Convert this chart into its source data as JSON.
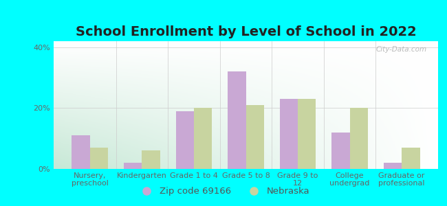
{
  "title": "School Enrollment by Level of School in 2022",
  "categories": [
    "Nursery,\npreschool",
    "Kindergarten",
    "Grade 1 to 4",
    "Grade 5 to 8",
    "Grade 9 to\n12",
    "College\nundergrad",
    "Graduate or\nprofessional"
  ],
  "zipcode_values": [
    11,
    2,
    19,
    32,
    23,
    12,
    2
  ],
  "nebraska_values": [
    7,
    6,
    20,
    21,
    23,
    20,
    7
  ],
  "zipcode_color": "#c9a8d4",
  "nebraska_color": "#c8d4a0",
  "background_outer": "#00ffff",
  "background_inner_topleft": "#e8f5ee",
  "background_inner_topright": "#ffffff",
  "background_inner_bottomleft": "#c8e8d8",
  "title_fontsize": 14,
  "tick_fontsize": 8,
  "legend_fontsize": 9.5,
  "ylim": [
    0,
    42
  ],
  "yticks": [
    0,
    20,
    40
  ],
  "ytick_labels": [
    "0%",
    "20%",
    "40%"
  ],
  "bar_width": 0.35,
  "zipcode_label": "Zip code 69166",
  "nebraska_label": "Nebraska",
  "watermark": "City-Data.com"
}
